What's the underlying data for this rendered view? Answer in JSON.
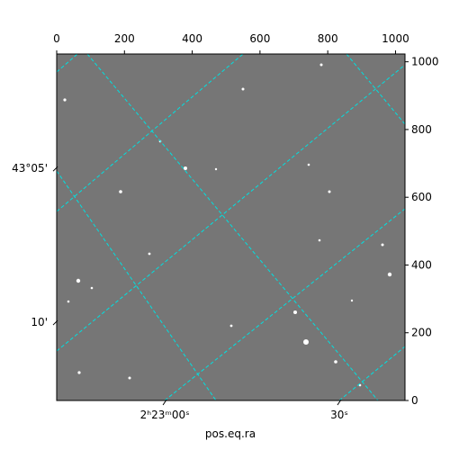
{
  "chart_data": {
    "type": "image",
    "xlabel": "pos.eq.ra",
    "xlim": [
      0,
      1028
    ],
    "ylim": [
      0,
      1023
    ],
    "xticks": [
      0,
      200,
      400,
      600,
      800,
      1000
    ],
    "yticks": [
      0,
      200,
      400,
      600,
      800,
      1000
    ],
    "ra_ticks": [
      {
        "value": 319,
        "label": "2ʰ23ᵐ00ˢ"
      },
      {
        "value": 834,
        "label": "30ˢ"
      }
    ],
    "dec_ticks": [
      {
        "value": 685,
        "label": "43°05'"
      },
      {
        "value": 231,
        "label": "10'"
      }
    ]
  }
}
